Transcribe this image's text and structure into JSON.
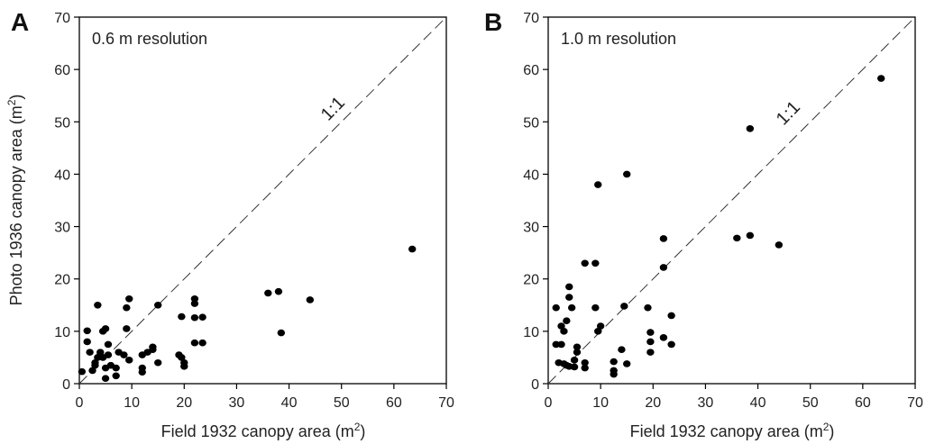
{
  "chart_data": [
    {
      "type": "scatter",
      "panel_label": "A",
      "title": "",
      "annotation": "0.6 m resolution",
      "xlabel": "Field 1932 canopy area (m",
      "xlabel_sup": "2",
      "xlabel_end": ")",
      "ylabel": "Photo 1936 canopy area (m",
      "ylabel_sup": "2",
      "ylabel_end": ")",
      "xlim": [
        0,
        70
      ],
      "ylim": [
        0,
        70
      ],
      "xticks": [
        "0",
        "10",
        "20",
        "30",
        "40",
        "50",
        "60",
        "70"
      ],
      "yticks": [
        "0",
        "10",
        "20",
        "30",
        "40",
        "50",
        "60",
        "70"
      ],
      "grid": false,
      "reference_line": {
        "label": "1:1",
        "style": "dashed"
      },
      "series": [
        {
          "points": [
            [
              0.5,
              2.3
            ],
            [
              1.5,
              10.1
            ],
            [
              1.5,
              8.0
            ],
            [
              2,
              6.0
            ],
            [
              2.5,
              2.5
            ],
            [
              3,
              4.0
            ],
            [
              3,
              3.5
            ],
            [
              3.5,
              15.0
            ],
            [
              3.5,
              5.0
            ],
            [
              4,
              6.0
            ],
            [
              4,
              5.5
            ],
            [
              4.5,
              10.0
            ],
            [
              4.5,
              5.0
            ],
            [
              5,
              10.5
            ],
            [
              5,
              3.0
            ],
            [
              5,
              1.0
            ],
            [
              5.5,
              7.5
            ],
            [
              5.5,
              5.5
            ],
            [
              6,
              3.5
            ],
            [
              7,
              1.5
            ],
            [
              7,
              3.0
            ],
            [
              7.5,
              6.0
            ],
            [
              8.5,
              5.5
            ],
            [
              9,
              14.5
            ],
            [
              9,
              10.5
            ],
            [
              9.5,
              16.2
            ],
            [
              9.5,
              4.5
            ],
            [
              12,
              5.5
            ],
            [
              12,
              3.0
            ],
            [
              12,
              2.2
            ],
            [
              13,
              6.0
            ],
            [
              14,
              7.0
            ],
            [
              14,
              6.5
            ],
            [
              15,
              15.0
            ],
            [
              15,
              4.0
            ],
            [
              19,
              5.5
            ],
            [
              19.5,
              5.0
            ],
            [
              19.5,
              12.8
            ],
            [
              20,
              4.0
            ],
            [
              20,
              3.3
            ],
            [
              22,
              16.2
            ],
            [
              22,
              15.3
            ],
            [
              22,
              12.6
            ],
            [
              22,
              7.8
            ],
            [
              23.5,
              12.7
            ],
            [
              23.5,
              7.8
            ],
            [
              36,
              17.3
            ],
            [
              38,
              17.6
            ],
            [
              38.5,
              9.7
            ],
            [
              44,
              16.0
            ],
            [
              63.5,
              25.7
            ]
          ]
        }
      ]
    },
    {
      "type": "scatter",
      "panel_label": "B",
      "title": "",
      "annotation": "1.0 m resolution",
      "xlabel": "Field 1932 canopy area (m",
      "xlabel_sup": "2",
      "xlabel_end": ")",
      "ylabel": "",
      "xlim": [
        0,
        70
      ],
      "ylim": [
        0,
        70
      ],
      "xticks": [
        "0",
        "10",
        "20",
        "30",
        "40",
        "50",
        "60",
        "70"
      ],
      "yticks": [
        "0",
        "10",
        "20",
        "30",
        "40",
        "50",
        "60",
        "70"
      ],
      "grid": false,
      "reference_line": {
        "label": "1:1",
        "style": "dashed"
      },
      "series": [
        {
          "points": [
            [
              1.5,
              14.5
            ],
            [
              1.5,
              7.5
            ],
            [
              2,
              4.0
            ],
            [
              2.5,
              11.0
            ],
            [
              2.5,
              7.5
            ],
            [
              3,
              10.0
            ],
            [
              3,
              3.8
            ],
            [
              3.5,
              12.0
            ],
            [
              3.5,
              3.5
            ],
            [
              4,
              18.5
            ],
            [
              4,
              16.5
            ],
            [
              4,
              3.3
            ],
            [
              4.5,
              14.5
            ],
            [
              5,
              4.5
            ],
            [
              5,
              3.2
            ],
            [
              5.5,
              7.0
            ],
            [
              5.5,
              6.0
            ],
            [
              7,
              23.0
            ],
            [
              7,
              4.0
            ],
            [
              7,
              3.0
            ],
            [
              9,
              23.0
            ],
            [
              9,
              14.5
            ],
            [
              9.5,
              38.0
            ],
            [
              9.5,
              10.0
            ],
            [
              10,
              11.0
            ],
            [
              12.5,
              4.2
            ],
            [
              12.5,
              2.5
            ],
            [
              12.5,
              1.8
            ],
            [
              14,
              6.5
            ],
            [
              14.5,
              14.8
            ],
            [
              15,
              40.0
            ],
            [
              15,
              3.8
            ],
            [
              19,
              14.5
            ],
            [
              19.5,
              9.8
            ],
            [
              19.5,
              8.0
            ],
            [
              19.5,
              6.0
            ],
            [
              22,
              27.7
            ],
            [
              22,
              22.2
            ],
            [
              22,
              8.8
            ],
            [
              23.5,
              13.0
            ],
            [
              23.5,
              7.5
            ],
            [
              36,
              27.8
            ],
            [
              38.5,
              48.7
            ],
            [
              38.5,
              28.3
            ],
            [
              44,
              26.5
            ],
            [
              63.5,
              58.3
            ]
          ]
        }
      ]
    }
  ]
}
